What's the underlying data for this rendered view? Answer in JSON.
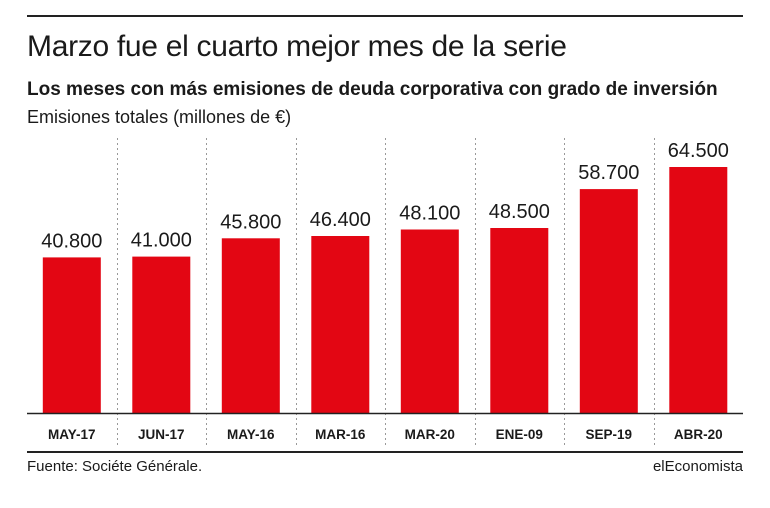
{
  "header": {
    "title": "Marzo fue el cuarto mejor mes de la serie",
    "subtitle": "Los meses con más emisiones de deuda corporativa con grado de inversión",
    "unit_label": "Emisiones totales (millones de €)"
  },
  "footer": {
    "source": "Fuente: Sociéte Générale.",
    "brand": "elEconomista"
  },
  "colors": {
    "bar": "#e30613",
    "text": "#1a1a1a",
    "gridline": "#999999"
  },
  "chart_data": {
    "type": "bar",
    "categories": [
      "MAY-17",
      "JUN-17",
      "MAY-16",
      "MAR-16",
      "MAR-20",
      "ENE-09",
      "SEP-19",
      "ABR-20"
    ],
    "values": [
      40800,
      41000,
      45800,
      46400,
      48100,
      48500,
      58700,
      64500
    ],
    "value_labels": [
      "40.800",
      "41.000",
      "45.800",
      "46.400",
      "48.100",
      "48.500",
      "58.700",
      "64.500"
    ],
    "title": "Marzo fue el cuarto mejor mes de la serie",
    "ylabel": "Emisiones totales (millones de €)",
    "ylim": [
      0,
      70000
    ],
    "grid": "vertical dotted separators",
    "legend": "none"
  }
}
